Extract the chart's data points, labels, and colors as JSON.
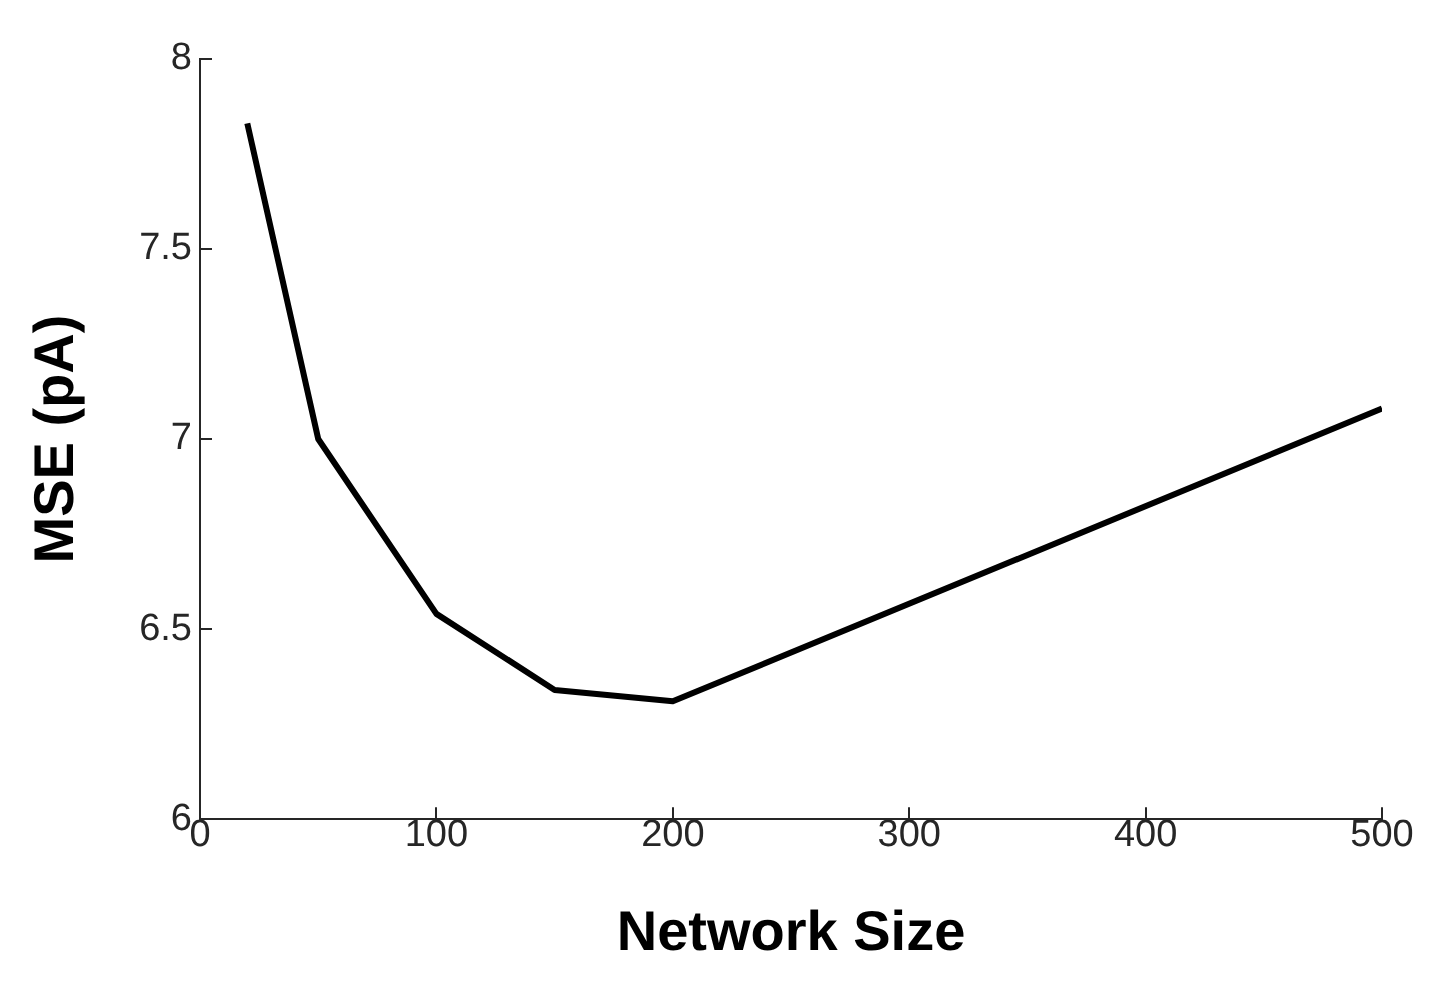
{
  "chart_data": {
    "type": "line",
    "xlabel": "Network Size",
    "ylabel": "MSE (pA)",
    "x": [
      20,
      50,
      100,
      150,
      200,
      500
    ],
    "series": [
      {
        "color": "#000000",
        "values": [
          7.83,
          7.0,
          6.54,
          6.34,
          6.31,
          7.08
        ]
      }
    ],
    "xlim": [
      0,
      500
    ],
    "xticks": [
      0,
      100,
      200,
      300,
      400,
      500
    ],
    "ylim": [
      6,
      8
    ],
    "yticks": [
      6,
      6.5,
      7,
      7.5,
      8
    ],
    "grid": false,
    "legend": false,
    "marker": "none",
    "line_style": "solid"
  }
}
